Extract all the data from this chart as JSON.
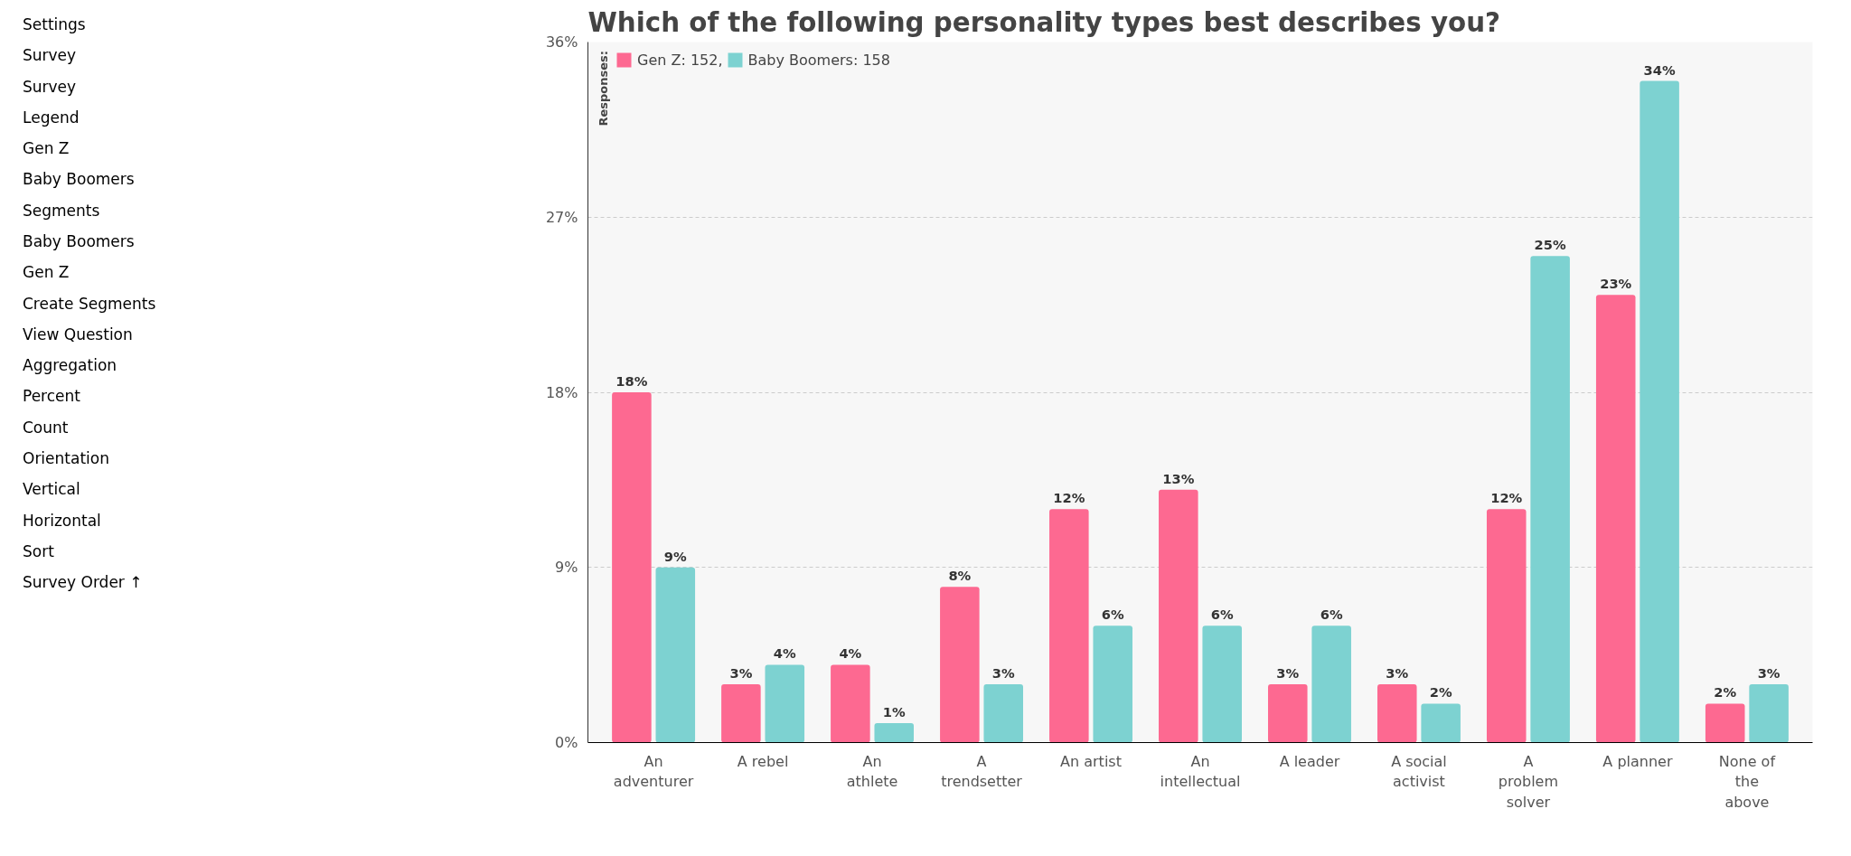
{
  "chart_data": {
    "type": "bar",
    "title": "Which of the following personality types best describes you?",
    "legend_title": "Responses:",
    "legend": "top left",
    "grid": "y",
    "categories": [
      "An\nadventurer",
      "A rebel",
      "An\nathlete",
      "A\ntrendsetter",
      "An artist",
      "An\nintellectual",
      "A leader",
      "A social\nactivist",
      "A\nproblem\nsolver",
      "A planner",
      "None of\nthe\nabove"
    ],
    "series": [
      {
        "name": "Gen Z: 152,",
        "color": "#fd6991",
        "values": [
          18,
          3,
          4,
          8,
          12,
          13,
          3,
          3,
          12,
          23,
          2
        ],
        "value_labels": [
          "18%",
          "3%",
          "4%",
          "8%",
          "12%",
          "13%",
          "3%",
          "3%",
          "12%",
          "23%",
          "2%"
        ]
      },
      {
        "name": "Baby Boomers: 158",
        "color": "#7dd2d1",
        "values": [
          9,
          4,
          1,
          3,
          6,
          6,
          6,
          2,
          25,
          34,
          3
        ],
        "value_labels": [
          "9%",
          "4%",
          "1%",
          "3%",
          "6%",
          "6%",
          "6%",
          "2%",
          "25%",
          "34%",
          "3%"
        ]
      }
    ],
    "ylim": [
      0,
      36
    ],
    "yticks": [
      {
        "value": 0,
        "label": "0%"
      },
      {
        "value": 9,
        "label": "9%"
      },
      {
        "value": 18,
        "label": "18%"
      },
      {
        "value": 27,
        "label": "27%"
      },
      {
        "value": 36,
        "label": "36%"
      }
    ],
    "annotations": [
      "Settings",
      "Survey",
      "Survey",
      "Legend",
      "Gen Z",
      "Baby Boomers",
      "Segments",
      "Baby Boomers",
      "Gen Z",
      "Create Segments",
      "View Question",
      "Aggregation",
      "Percent",
      "Count",
      "Orientation",
      "Vertical",
      "Horizontal",
      "Sort",
      "Survey Order ↑"
    ]
  }
}
